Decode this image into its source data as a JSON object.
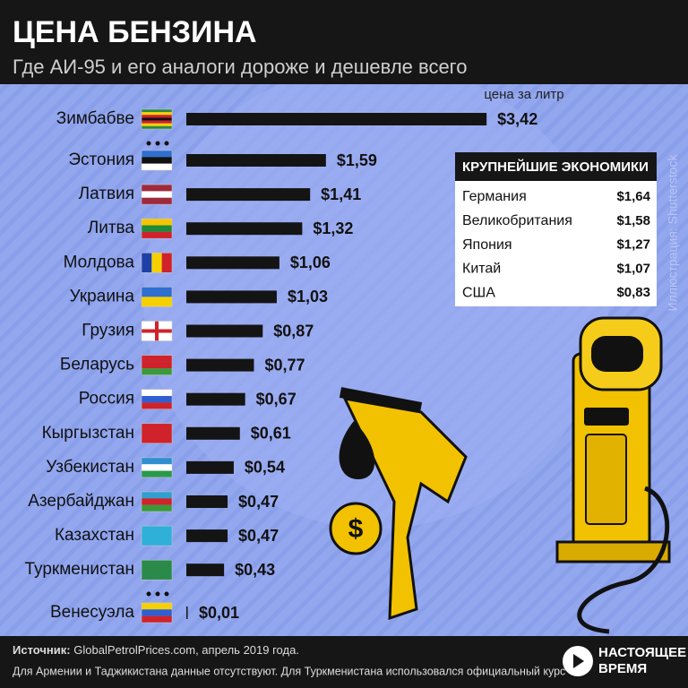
{
  "title": "ЦЕНА БЕНЗИНА",
  "subtitle": "Где АИ-95 и его аналоги дороже и дешевле всего",
  "chart_data": {
    "type": "bar",
    "orientation": "horizontal",
    "annotation": "цена за литр",
    "categories": [
      "Зимбабве",
      "Эстония",
      "Латвия",
      "Литва",
      "Молдова",
      "Украина",
      "Грузия",
      "Беларусь",
      "Россия",
      "Кыргызстан",
      "Узбекистан",
      "Азербайджан",
      "Казахстан",
      "Туркменистан",
      "Венесуэла"
    ],
    "values": [
      3.42,
      1.59,
      1.41,
      1.32,
      1.06,
      1.03,
      0.87,
      0.77,
      0.67,
      0.61,
      0.54,
      0.47,
      0.47,
      0.43,
      0.01
    ],
    "value_labels": [
      "$3,42",
      "$1,59",
      "$1,41",
      "$1,32",
      "$1,06",
      "$1,03",
      "$0,87",
      "$0,77",
      "$0,67",
      "$0,61",
      "$0,54",
      "$0,47",
      "$0,47",
      "$0,43",
      "$0,01"
    ],
    "color": "#141414",
    "xlim": [
      0,
      3.5
    ]
  },
  "table": {
    "title": "КРУПНЕЙШИЕ ЭКОНОМИКИ",
    "rows": [
      [
        "Германия",
        "$1,64"
      ],
      [
        "Великобритания",
        "$1,58"
      ],
      [
        "Япония",
        "$1,27"
      ],
      [
        "Китай",
        "$1,07"
      ],
      [
        "США",
        "$0,83"
      ]
    ]
  },
  "credit": "Иллюстрация: Shutterstock",
  "footer": {
    "source_label": "Источник:",
    "source": "GlobalPetrolPrices.com, апрель 2019 года.",
    "note": "Для Армении и Таджикистана данные отсутствуют. Для Туркменистана использовался официальный курс"
  },
  "logo": [
    "НАСТОЯЩЕЕ",
    "ВРЕМЯ"
  ]
}
